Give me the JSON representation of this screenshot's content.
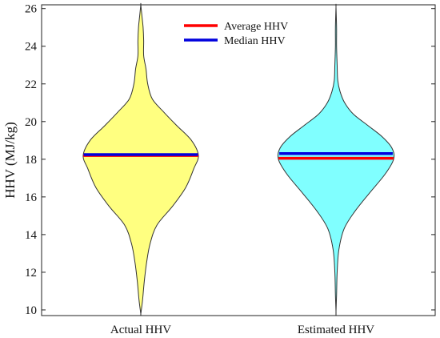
{
  "chart_data": {
    "type": "violin",
    "ylabel": "HHV (MJ/kg)",
    "ylim": [
      9.7,
      26.2
    ],
    "yticks": [
      10,
      12,
      14,
      16,
      18,
      20,
      22,
      24,
      26
    ],
    "categories": [
      "Actual HHV",
      "Estimated HHV"
    ],
    "series": [
      {
        "name": "Actual HHV",
        "color": "#ffff80",
        "average": 18.2,
        "median": 18.25,
        "range": [
          9.8,
          26.2
        ],
        "density_profile": [
          [
            9.8,
            0.0
          ],
          [
            10.5,
            0.03
          ],
          [
            11.5,
            0.06
          ],
          [
            12.5,
            0.1
          ],
          [
            13.5,
            0.16
          ],
          [
            14.5,
            0.28
          ],
          [
            15.5,
            0.55
          ],
          [
            16.5,
            0.78
          ],
          [
            17.5,
            0.92
          ],
          [
            18.2,
            1.0
          ],
          [
            19.0,
            0.88
          ],
          [
            19.8,
            0.62
          ],
          [
            20.5,
            0.4
          ],
          [
            21.2,
            0.2
          ],
          [
            22.0,
            0.12
          ],
          [
            22.8,
            0.09
          ],
          [
            23.5,
            0.05
          ],
          [
            24.3,
            0.05
          ],
          [
            25.0,
            0.04
          ],
          [
            25.6,
            0.02
          ],
          [
            26.2,
            0.0
          ]
        ]
      },
      {
        "name": "Estimated HHV",
        "color": "#80ffff",
        "average": 18.05,
        "median": 18.3,
        "range": [
          9.9,
          26.1
        ],
        "density_profile": [
          [
            9.9,
            0.0
          ],
          [
            10.8,
            0.01
          ],
          [
            12.0,
            0.02
          ],
          [
            13.2,
            0.05
          ],
          [
            14.3,
            0.14
          ],
          [
            15.2,
            0.32
          ],
          [
            16.2,
            0.58
          ],
          [
            17.2,
            0.85
          ],
          [
            18.0,
            1.0
          ],
          [
            18.6,
            0.97
          ],
          [
            19.2,
            0.8
          ],
          [
            19.8,
            0.55
          ],
          [
            20.4,
            0.3
          ],
          [
            21.0,
            0.15
          ],
          [
            21.6,
            0.07
          ],
          [
            22.2,
            0.03
          ],
          [
            23.0,
            0.02
          ],
          [
            24.0,
            0.01
          ],
          [
            25.0,
            0.01
          ],
          [
            26.1,
            0.0
          ]
        ]
      }
    ],
    "legend": {
      "position": "top-center",
      "entries": [
        {
          "label": "Average HHV",
          "color": "#ff0000"
        },
        {
          "label": "Median HHV",
          "color": "#0000dd"
        }
      ]
    },
    "grid": false
  }
}
